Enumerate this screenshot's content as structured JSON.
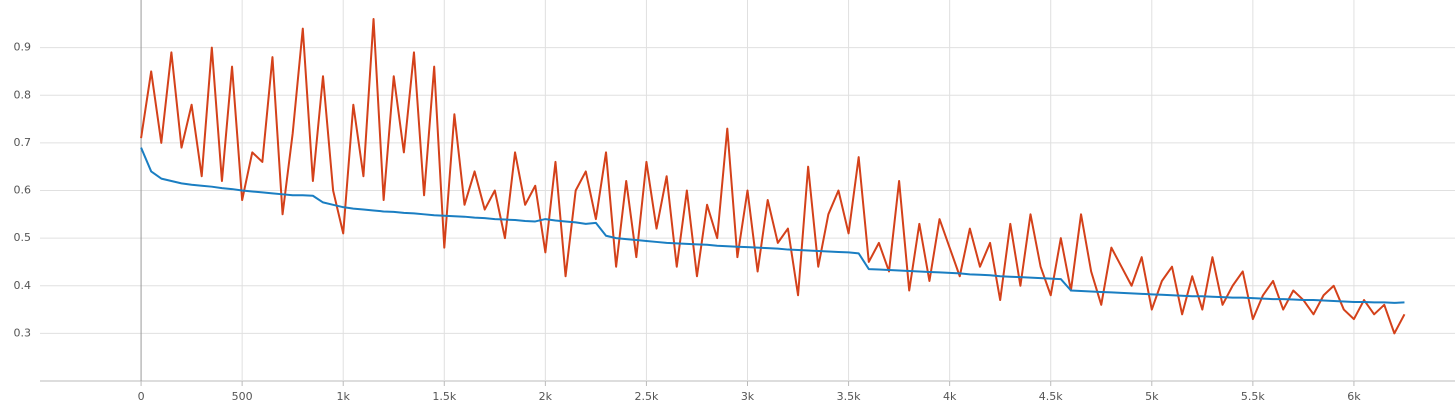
{
  "chart_data": {
    "type": "line",
    "x": [
      0,
      50,
      100,
      150,
      200,
      250,
      300,
      350,
      400,
      450,
      500,
      550,
      600,
      650,
      700,
      750,
      800,
      850,
      900,
      950,
      1000,
      1050,
      1100,
      1150,
      1200,
      1250,
      1300,
      1350,
      1400,
      1450,
      1500,
      1550,
      1600,
      1650,
      1700,
      1750,
      1800,
      1850,
      1900,
      1950,
      2000,
      2050,
      2100,
      2150,
      2200,
      2250,
      2300,
      2350,
      2400,
      2450,
      2500,
      2550,
      2600,
      2650,
      2700,
      2750,
      2800,
      2850,
      2900,
      2950,
      3000,
      3050,
      3100,
      3150,
      3200,
      3250,
      3300,
      3350,
      3400,
      3450,
      3500,
      3550,
      3600,
      3650,
      3700,
      3750,
      3800,
      3850,
      3900,
      3950,
      4000,
      4050,
      4100,
      4150,
      4200,
      4250,
      4300,
      4350,
      4400,
      4450,
      4500,
      4550,
      4600,
      4650,
      4700,
      4750,
      4800,
      4850,
      4900,
      4950,
      5000,
      5050,
      5100,
      5150,
      5200,
      5250,
      5300,
      5350,
      5400,
      5450,
      5500,
      5550,
      5600,
      5650,
      5700,
      5750,
      5800,
      5850,
      5900,
      5950,
      6000,
      6050,
      6100,
      6150,
      6200,
      6250
    ],
    "series": [
      {
        "color": "#d4411a",
        "values": [
          0.71,
          0.85,
          0.7,
          0.89,
          0.69,
          0.78,
          0.63,
          0.9,
          0.62,
          0.86,
          0.58,
          0.68,
          0.66,
          0.88,
          0.55,
          0.72,
          0.94,
          0.62,
          0.84,
          0.6,
          0.51,
          0.78,
          0.63,
          0.96,
          0.58,
          0.84,
          0.68,
          0.89,
          0.59,
          0.86,
          0.48,
          0.76,
          0.57,
          0.64,
          0.56,
          0.6,
          0.5,
          0.68,
          0.57,
          0.61,
          0.47,
          0.66,
          0.42,
          0.6,
          0.64,
          0.54,
          0.68,
          0.44,
          0.62,
          0.46,
          0.66,
          0.52,
          0.63,
          0.44,
          0.6,
          0.42,
          0.57,
          0.5,
          0.73,
          0.46,
          0.6,
          0.43,
          0.58,
          0.49,
          0.52,
          0.38,
          0.65,
          0.44,
          0.55,
          0.6,
          0.51,
          0.67,
          0.45,
          0.49,
          0.43,
          0.62,
          0.39,
          0.53,
          0.41,
          0.54,
          0.48,
          0.42,
          0.52,
          0.44,
          0.49,
          0.37,
          0.53,
          0.4,
          0.55,
          0.44,
          0.38,
          0.5,
          0.39,
          0.55,
          0.43,
          0.36,
          0.48,
          0.44,
          0.4,
          0.46,
          0.35,
          0.41,
          0.44,
          0.34,
          0.42,
          0.35,
          0.46,
          0.36,
          0.4,
          0.43,
          0.33,
          0.38,
          0.41,
          0.35,
          0.39,
          0.37,
          0.34,
          0.38,
          0.4,
          0.35,
          0.33,
          0.37,
          0.34,
          0.36,
          0.3,
          0.34
        ]
      },
      {
        "color": "#1a7ec2",
        "values": [
          0.69,
          0.64,
          0.625,
          0.62,
          0.615,
          0.612,
          0.61,
          0.608,
          0.605,
          0.603,
          0.6,
          0.598,
          0.596,
          0.594,
          0.592,
          0.59,
          0.59,
          0.589,
          0.575,
          0.57,
          0.565,
          0.562,
          0.56,
          0.558,
          0.556,
          0.555,
          0.553,
          0.552,
          0.55,
          0.548,
          0.547,
          0.546,
          0.545,
          0.543,
          0.542,
          0.54,
          0.539,
          0.538,
          0.536,
          0.535,
          0.54,
          0.537,
          0.535,
          0.533,
          0.53,
          0.532,
          0.505,
          0.5,
          0.498,
          0.496,
          0.494,
          0.492,
          0.49,
          0.489,
          0.488,
          0.487,
          0.486,
          0.484,
          0.483,
          0.482,
          0.481,
          0.48,
          0.479,
          0.478,
          0.476,
          0.475,
          0.474,
          0.473,
          0.472,
          0.471,
          0.47,
          0.468,
          0.435,
          0.434,
          0.433,
          0.432,
          0.431,
          0.43,
          0.429,
          0.428,
          0.427,
          0.426,
          0.424,
          0.423,
          0.422,
          0.42,
          0.419,
          0.418,
          0.417,
          0.416,
          0.415,
          0.414,
          0.39,
          0.389,
          0.388,
          0.387,
          0.386,
          0.385,
          0.384,
          0.383,
          0.382,
          0.381,
          0.38,
          0.379,
          0.378,
          0.378,
          0.377,
          0.376,
          0.375,
          0.375,
          0.374,
          0.373,
          0.372,
          0.372,
          0.371,
          0.37,
          0.37,
          0.369,
          0.368,
          0.367,
          0.366,
          0.366,
          0.365,
          0.365,
          0.364,
          0.365
        ]
      }
    ],
    "xlim": [
      -500,
      6500
    ],
    "ylim": [
      0.2,
      1.0
    ],
    "xticks": [
      0,
      500,
      {
        "value": 1000,
        "label": "1k"
      },
      {
        "value": 1500,
        "label": "1.5k"
      },
      {
        "value": 2000,
        "label": "2k"
      },
      {
        "value": 2500,
        "label": "2.5k"
      },
      {
        "value": 3000,
        "label": "3k"
      },
      {
        "value": 3500,
        "label": "3.5k"
      },
      {
        "value": 4000,
        "label": "4k"
      },
      {
        "value": 4500,
        "label": "4.5k"
      },
      {
        "value": 5000,
        "label": "5k"
      },
      {
        "value": 5500,
        "label": "5.5k"
      },
      {
        "value": 6000,
        "label": "6k"
      }
    ],
    "yticks": [
      0.3,
      0.4,
      0.5,
      0.6,
      0.7,
      0.8,
      0.9
    ],
    "grid": true
  }
}
